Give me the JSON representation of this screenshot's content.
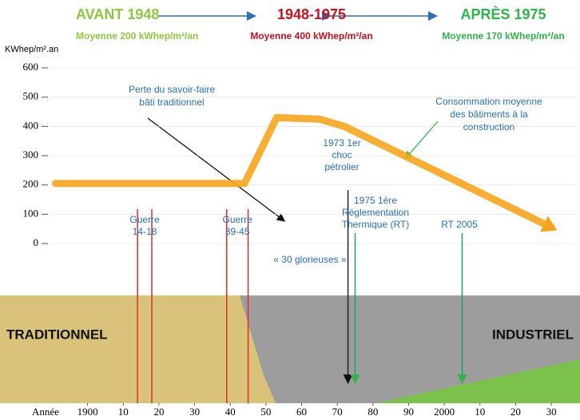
{
  "header": [
    {
      "title": "AVANT 1948",
      "subtitle": "Moyenne 200 kWhep/m²/an",
      "color": "#8dc63f"
    },
    {
      "title": "1948-1975",
      "subtitle": "Moyenne 400 kWhep/m²/an",
      "color": "#c1121f"
    },
    {
      "title": "APRÈS 1975",
      "subtitle": "Moyenne 170 kWhep/m²/an",
      "color": "#2fb34a"
    }
  ],
  "chart_data": {
    "type": "line",
    "y_label": "KWhep/m².an",
    "x_label": "Année",
    "x": [
      1891,
      1900,
      1944,
      1953,
      1965,
      1972,
      2030
    ],
    "series": [
      {
        "color": "#f7a41d",
        "values": [
          205,
          205,
          205,
          430,
          425,
          400,
          55
        ]
      }
    ],
    "xlim": [
      1890,
      2032
    ],
    "ylim": [
      0,
      600
    ],
    "yticks": [
      0,
      100,
      200,
      300,
      400,
      500,
      600
    ],
    "xticks": [
      1900,
      {
        "value": 1910,
        "label": "10"
      },
      {
        "value": 1920,
        "label": "20"
      },
      {
        "value": 1930,
        "label": "30"
      },
      {
        "value": 1940,
        "label": "40"
      },
      {
        "value": 1950,
        "label": "50"
      },
      {
        "value": 1960,
        "label": "60"
      },
      {
        "value": 1970,
        "label": "70"
      },
      {
        "value": 1980,
        "label": "80"
      },
      {
        "value": 1990,
        "label": "90"
      },
      2000,
      {
        "value": 2010,
        "label": "10"
      },
      {
        "value": 2020,
        "label": "20"
      },
      {
        "value": 2030,
        "label": "30"
      }
    ],
    "periods": [
      {
        "label": [
          "Guerre",
          "14-18"
        ],
        "start": 1914,
        "end": 1918,
        "color": "#d9302c"
      },
      {
        "label": [
          "Guerre",
          "39-45"
        ],
        "start": 1939,
        "end": 1945,
        "color": "#d9302c"
      }
    ],
    "events": [
      {
        "label": [
          "1973 1er",
          "choc",
          "pétrolier"
        ],
        "year": 1973,
        "color": "#222222"
      },
      {
        "label": [
          "1975 1ére",
          "Réglementation",
          "Thermique (RT)"
        ],
        "year": 1975,
        "color": "#1f9e7a"
      },
      {
        "label": [
          "RT 2005"
        ],
        "year": 2005,
        "color": "#1f9e7a"
      }
    ],
    "annotations": [
      [
        "Perte du savoir-faire",
        "bâti traditionnel"
      ],
      [
        "Consommation moyenne",
        "des bâtiments à la",
        "construction"
      ],
      [
        "« 30 glorieuses »"
      ]
    ]
  },
  "scene": {
    "left": "TRADITIONNEL",
    "right": "INDUSTRIEL"
  }
}
